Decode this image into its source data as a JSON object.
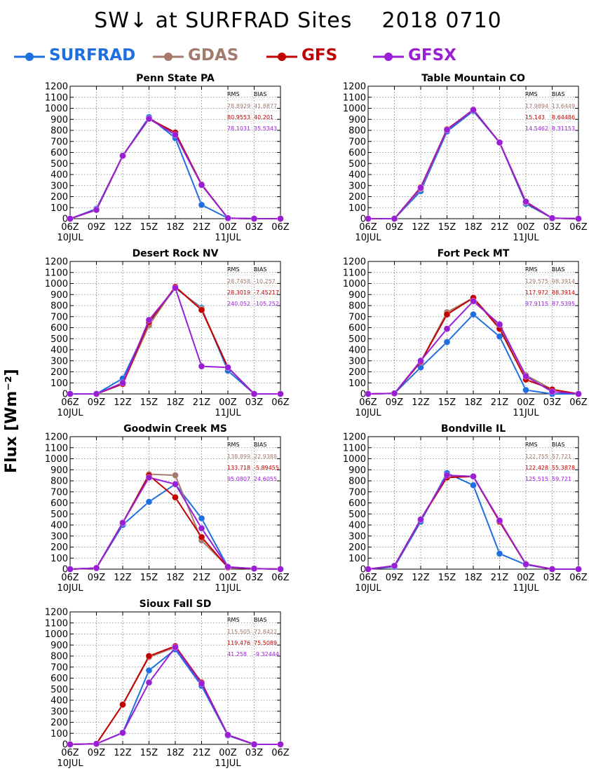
{
  "title": "SW↓ at SURFRAD Sites    2018 0710",
  "ylabel": "Flux [Wm⁻²]",
  "legend": [
    {
      "name": "SURFRAD",
      "color": "#1f6fe0"
    },
    {
      "name": "GDAS",
      "color": "#a47a6c"
    },
    {
      "name": "GFS",
      "color": "#c30000"
    },
    {
      "name": "GFSX",
      "color": "#9a1ed6"
    }
  ],
  "stats_headers": {
    "rms": "RMS",
    "bias": "BIAS"
  },
  "chart_data": [
    {
      "type": "line",
      "title": "Penn State PA",
      "categories": [
        "06Z",
        "09Z",
        "12Z",
        "15Z",
        "18Z",
        "21Z",
        "00Z",
        "03Z",
        "06Z"
      ],
      "date_labels": [
        "10JUL",
        "11JUL"
      ],
      "ylim": [
        0,
        1200
      ],
      "yticks": [
        0,
        100,
        200,
        300,
        400,
        500,
        600,
        700,
        800,
        900,
        1000,
        1100,
        1200
      ],
      "grid": true,
      "series": [
        {
          "name": "SURFRAD",
          "color": "#1f6fe0",
          "values": [
            0,
            90,
            570,
            920,
            730,
            125,
            5,
            0,
            0
          ]
        },
        {
          "name": "GDAS",
          "color": "#a47a6c",
          "values": [
            0,
            80,
            570,
            905,
            780,
            310,
            5,
            0,
            0
          ]
        },
        {
          "name": "GFS",
          "color": "#c30000",
          "values": [
            0,
            80,
            570,
            905,
            780,
            310,
            5,
            0,
            0
          ]
        },
        {
          "name": "GFSX",
          "color": "#9a1ed6",
          "values": [
            0,
            80,
            570,
            905,
            760,
            305,
            5,
            0,
            0
          ]
        }
      ],
      "stats": [
        {
          "series": "GDAS",
          "rms": "78.8929",
          "bias": "41.8877"
        },
        {
          "series": "GFS",
          "rms": "80.9553",
          "bias": "40.201"
        },
        {
          "series": "GFSX",
          "rms": "78.1031",
          "bias": "35.5343"
        }
      ]
    },
    {
      "type": "line",
      "title": "Table Mountain CO",
      "categories": [
        "06Z",
        "09Z",
        "12Z",
        "15Z",
        "18Z",
        "21Z",
        "00Z",
        "03Z",
        "06Z"
      ],
      "date_labels": [
        "10JUL",
        "11JUL"
      ],
      "ylim": [
        0,
        1200
      ],
      "yticks": [
        0,
        100,
        200,
        300,
        400,
        500,
        600,
        700,
        800,
        900,
        1000,
        1100,
        1200
      ],
      "grid": true,
      "series": [
        {
          "name": "SURFRAD",
          "color": "#1f6fe0",
          "values": [
            0,
            0,
            250,
            790,
            975,
            690,
            135,
            5,
            0
          ]
        },
        {
          "name": "GDAS",
          "color": "#a47a6c",
          "values": [
            0,
            0,
            270,
            805,
            990,
            690,
            150,
            5,
            0
          ]
        },
        {
          "name": "GFS",
          "color": "#c30000",
          "values": [
            0,
            0,
            285,
            810,
            985,
            690,
            150,
            5,
            0
          ]
        },
        {
          "name": "GFSX",
          "color": "#9a1ed6",
          "values": [
            0,
            0,
            280,
            805,
            985,
            690,
            155,
            5,
            0
          ]
        }
      ],
      "stats": [
        {
          "series": "GDAS",
          "rms": "17.9894",
          "bias": "13.6449"
        },
        {
          "series": "GFS",
          "rms": "15.143",
          "bias": "8.64486"
        },
        {
          "series": "GFSX",
          "rms": "14.5462",
          "bias": "8.31153"
        }
      ]
    },
    {
      "type": "line",
      "title": "Desert Rock NV",
      "categories": [
        "06Z",
        "09Z",
        "12Z",
        "15Z",
        "18Z",
        "21Z",
        "00Z",
        "03Z",
        "06Z"
      ],
      "date_labels": [
        "10JUL",
        "11JUL"
      ],
      "ylim": [
        0,
        1200
      ],
      "yticks": [
        0,
        100,
        200,
        300,
        400,
        500,
        600,
        700,
        800,
        900,
        1000,
        1100,
        1200
      ],
      "grid": true,
      "series": [
        {
          "name": "SURFRAD",
          "color": "#1f6fe0",
          "values": [
            0,
            0,
            140,
            640,
            960,
            780,
            210,
            0,
            0
          ]
        },
        {
          "name": "GDAS",
          "color": "#a47a6c",
          "values": [
            0,
            0,
            90,
            620,
            970,
            770,
            240,
            0,
            0
          ]
        },
        {
          "name": "GFS",
          "color": "#c30000",
          "values": [
            0,
            0,
            90,
            650,
            970,
            760,
            240,
            0,
            0
          ]
        },
        {
          "name": "GFSX",
          "color": "#9a1ed6",
          "values": [
            0,
            0,
            100,
            670,
            960,
            250,
            240,
            0,
            0
          ]
        }
      ],
      "stats": [
        {
          "series": "GDAS",
          "rms": "28.7458",
          "bias": "-10.257"
        },
        {
          "series": "GFS",
          "rms": "28.3019",
          "bias": "-7.45217"
        },
        {
          "series": "GFSX",
          "rms": "240.052",
          "bias": "-105.252"
        }
      ]
    },
    {
      "type": "line",
      "title": "Fort Peck MT",
      "categories": [
        "06Z",
        "09Z",
        "12Z",
        "15Z",
        "18Z",
        "21Z",
        "00Z",
        "03Z",
        "06Z"
      ],
      "date_labels": [
        "10JUL",
        "11JUL"
      ],
      "ylim": [
        0,
        1200
      ],
      "yticks": [
        0,
        100,
        200,
        300,
        400,
        500,
        600,
        700,
        800,
        900,
        1000,
        1100,
        1200
      ],
      "grid": true,
      "series": [
        {
          "name": "SURFRAD",
          "color": "#1f6fe0",
          "values": [
            0,
            5,
            240,
            470,
            720,
            520,
            35,
            0,
            0
          ]
        },
        {
          "name": "GDAS",
          "color": "#a47a6c",
          "values": [
            0,
            5,
            290,
            740,
            870,
            610,
            170,
            40,
            0
          ]
        },
        {
          "name": "GFS",
          "color": "#c30000",
          "values": [
            0,
            5,
            290,
            720,
            870,
            590,
            130,
            40,
            0
          ]
        },
        {
          "name": "GFSX",
          "color": "#9a1ed6",
          "values": [
            0,
            5,
            300,
            590,
            840,
            630,
            160,
            20,
            0
          ]
        }
      ],
      "stats": [
        {
          "series": "GDAS",
          "rms": "129.575",
          "bias": "98.3914"
        },
        {
          "series": "GFS",
          "rms": "117.972",
          "bias": "88.3914"
        },
        {
          "series": "GFSX",
          "rms": "97.9115",
          "bias": "87.5395"
        }
      ]
    },
    {
      "type": "line",
      "title": "Goodwin Creek MS",
      "categories": [
        "06Z",
        "09Z",
        "12Z",
        "15Z",
        "18Z",
        "21Z",
        "00Z",
        "03Z",
        "06Z"
      ],
      "date_labels": [
        "10JUL",
        "11JUL"
      ],
      "ylim": [
        0,
        1200
      ],
      "yticks": [
        0,
        100,
        200,
        300,
        400,
        500,
        600,
        700,
        800,
        900,
        1000,
        1100,
        1200
      ],
      "grid": true,
      "series": [
        {
          "name": "SURFRAD",
          "color": "#1f6fe0",
          "values": [
            0,
            10,
            400,
            610,
            770,
            460,
            20,
            5,
            0
          ]
        },
        {
          "name": "GDAS",
          "color": "#a47a6c",
          "values": [
            0,
            10,
            420,
            860,
            850,
            260,
            20,
            5,
            0
          ]
        },
        {
          "name": "GFS",
          "color": "#c30000",
          "values": [
            0,
            10,
            420,
            850,
            650,
            290,
            15,
            5,
            0
          ]
        },
        {
          "name": "GFSX",
          "color": "#9a1ed6",
          "values": [
            0,
            10,
            420,
            830,
            770,
            370,
            20,
            5,
            0
          ]
        }
      ],
      "stats": [
        {
          "series": "GDAS",
          "rms": "138.899",
          "bias": "22.9388"
        },
        {
          "series": "GFS",
          "rms": "133.718",
          "bias": "-5.89455"
        },
        {
          "series": "GFSX",
          "rms": "95.0807",
          "bias": "24.6055"
        }
      ]
    },
    {
      "type": "line",
      "title": "Bondville IL",
      "categories": [
        "06Z",
        "09Z",
        "12Z",
        "15Z",
        "18Z",
        "21Z",
        "00Z",
        "03Z",
        "06Z"
      ],
      "date_labels": [
        "10JUL",
        "11JUL"
      ],
      "ylim": [
        0,
        1200
      ],
      "yticks": [
        0,
        100,
        200,
        300,
        400,
        500,
        600,
        700,
        800,
        900,
        1000,
        1100,
        1200
      ],
      "grid": true,
      "series": [
        {
          "name": "SURFRAD",
          "color": "#1f6fe0",
          "values": [
            0,
            20,
            430,
            870,
            760,
            140,
            40,
            0,
            0
          ]
        },
        {
          "name": "GDAS",
          "color": "#a47a6c",
          "values": [
            0,
            30,
            450,
            840,
            840,
            430,
            45,
            0,
            0
          ]
        },
        {
          "name": "GFS",
          "color": "#c30000",
          "values": [
            0,
            30,
            450,
            830,
            840,
            430,
            45,
            0,
            0
          ]
        },
        {
          "name": "GFSX",
          "color": "#9a1ed6",
          "values": [
            0,
            30,
            450,
            850,
            840,
            440,
            45,
            0,
            0
          ]
        }
      ],
      "stats": [
        {
          "series": "GDAS",
          "rms": "122.755",
          "bias": "57.721"
        },
        {
          "series": "GFS",
          "rms": "122.428",
          "bias": "55.3878"
        },
        {
          "series": "GFSX",
          "rms": "125.515",
          "bias": "59.721"
        }
      ]
    },
    {
      "type": "line",
      "title": "Sioux Fall SD",
      "categories": [
        "06Z",
        "09Z",
        "12Z",
        "15Z",
        "18Z",
        "21Z",
        "00Z",
        "03Z",
        "06Z"
      ],
      "date_labels": [
        "10JUL",
        "11JUL"
      ],
      "ylim": [
        0,
        1200
      ],
      "yticks": [
        0,
        100,
        200,
        300,
        400,
        500,
        600,
        700,
        800,
        900,
        1000,
        1100,
        1200
      ],
      "grid": true,
      "series": [
        {
          "name": "SURFRAD",
          "color": "#1f6fe0",
          "values": [
            0,
            5,
            105,
            670,
            860,
            530,
            80,
            0,
            0
          ]
        },
        {
          "name": "GDAS",
          "color": "#a47a6c",
          "values": [
            0,
            5,
            360,
            790,
            880,
            560,
            85,
            0,
            0
          ]
        },
        {
          "name": "GFS",
          "color": "#c30000",
          "values": [
            0,
            5,
            360,
            800,
            890,
            560,
            85,
            0,
            0
          ]
        },
        {
          "name": "GFSX",
          "color": "#9a1ed6",
          "values": [
            0,
            5,
            105,
            560,
            880,
            550,
            85,
            0,
            0
          ]
        }
      ],
      "stats": [
        {
          "series": "GDAS",
          "rms": "115.505",
          "bias": "72.8422"
        },
        {
          "series": "GFS",
          "rms": "119.476",
          "bias": "75.5089"
        },
        {
          "series": "GFSX",
          "rms": "41.258",
          "bias": "-9.32444"
        }
      ]
    }
  ]
}
